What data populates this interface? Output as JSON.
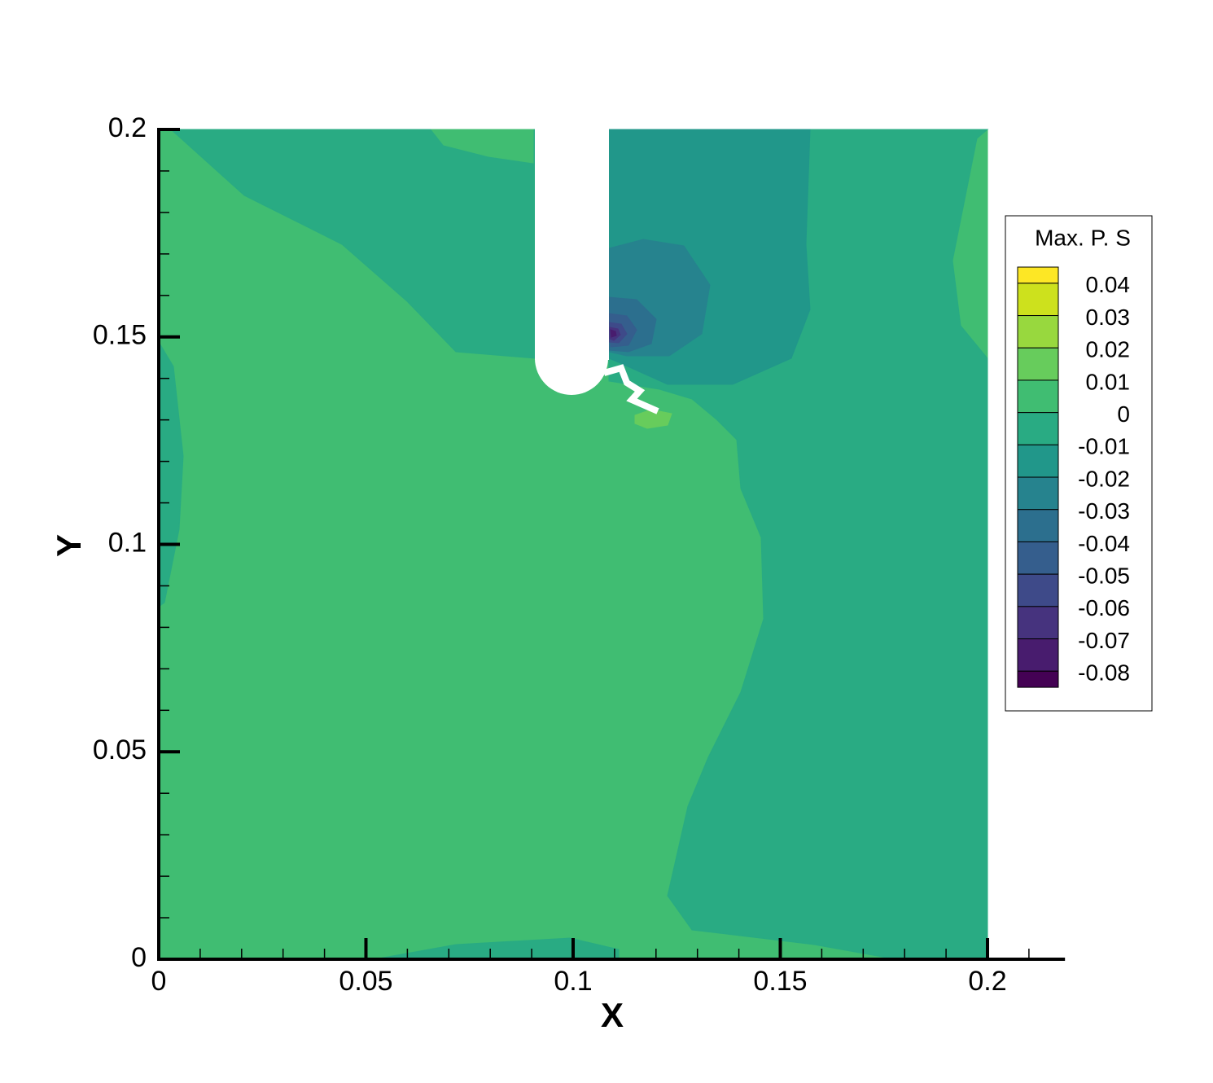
{
  "chart_data": {
    "type": "contour",
    "xlabel": "X",
    "ylabel": "Y",
    "xlim": [
      0,
      0.2187
    ],
    "ylim": [
      0,
      0.2
    ],
    "xticks": [
      0,
      0.05,
      0.1,
      0.15,
      0.2
    ],
    "yticks": [
      0,
      0.05,
      0.1,
      0.15,
      0.2
    ],
    "legend": {
      "title": "Max. P. S",
      "levels": [
        0.04,
        0.03,
        0.02,
        0.01,
        0,
        -0.01,
        -0.02,
        -0.03,
        -0.04,
        -0.05,
        -0.06,
        -0.07,
        -0.08
      ],
      "colors": [
        "#fde725",
        "#cde11d",
        "#98d83e",
        "#67cc5c",
        "#40bd72",
        "#29ab83",
        "#21978a",
        "#26838e",
        "#2c6f8e",
        "#355e8d",
        "#3e4a89",
        "#46337e",
        "#481c6e",
        "#440154"
      ]
    }
  }
}
